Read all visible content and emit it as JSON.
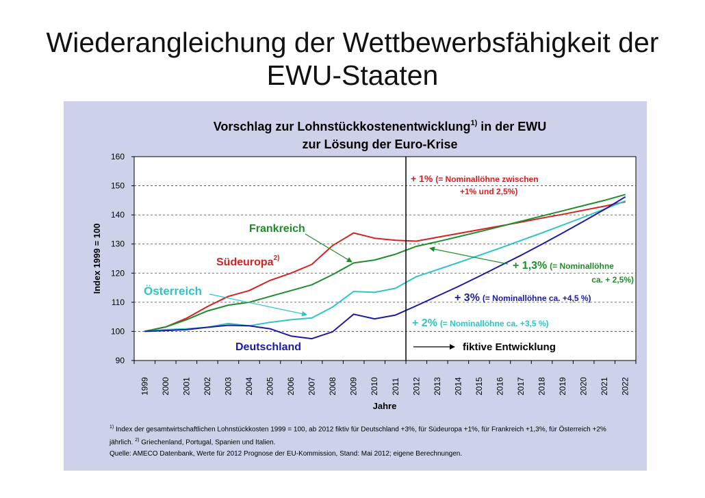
{
  "slide": {
    "title_line1": "Wiederangleichung der Wettbewerbsfähigkeit der",
    "title_line2": "EWU-Staaten"
  },
  "chart_data": {
    "type": "line",
    "title_line1": "Vorschlag zur Lohnstückkostenentwicklung",
    "title_sup": "1)",
    "title_line1_end": " in der EWU",
    "title_line2": "zur Lösung der Euro-Krise",
    "xlabel": "Jahre",
    "ylabel": "Index 1999 = 100",
    "ylim": [
      90,
      160
    ],
    "yticks": [
      90,
      100,
      110,
      120,
      130,
      140,
      150,
      160
    ],
    "grid": "dashed horizontal",
    "x": [
      1999,
      2000,
      2001,
      2002,
      2003,
      2004,
      2005,
      2006,
      2007,
      2008,
      2009,
      2010,
      2011,
      2012,
      2013,
      2014,
      2015,
      2016,
      2017,
      2018,
      2019,
      2020,
      2021,
      2022
    ],
    "divider_between": [
      2011,
      2012
    ],
    "series": [
      {
        "name": "Südeuropa",
        "sup": "2)",
        "color": "#d92020",
        "values": [
          100,
          101.5,
          104.5,
          108.5,
          112,
          114,
          117.5,
          120,
          123,
          129.5,
          133.8,
          132,
          131.3,
          131,
          132.3,
          133.6,
          134.9,
          136.2,
          137.5,
          138.9,
          140.2,
          141.6,
          143,
          144.5
        ]
      },
      {
        "name": "Frankreich",
        "color": "#1e8c2a",
        "values": [
          100,
          101.5,
          104,
          107,
          109,
          110,
          112,
          114,
          116,
          119.5,
          123.5,
          124.5,
          126.5,
          129.2,
          130.8,
          132.5,
          134.2,
          136,
          137.8,
          139.6,
          141.4,
          143.2,
          145,
          147
        ]
      },
      {
        "name": "Österreich",
        "color": "#2ec4c4",
        "values": [
          100,
          100.6,
          100.9,
          101.4,
          102.7,
          101.9,
          103.1,
          104,
          104.6,
          108.4,
          113.7,
          113.4,
          114.8,
          118.8,
          121.2,
          123.6,
          126.1,
          128.6,
          131.2,
          133.8,
          136.5,
          139.2,
          142,
          144.8
        ]
      },
      {
        "name": "Deutschland",
        "color": "#1a1aa8",
        "values": [
          100,
          100.3,
          100.6,
          101.4,
          102.1,
          101.9,
          100.9,
          98.4,
          97.5,
          99.9,
          105.9,
          104.3,
          105.6,
          108.8,
          112.1,
          115.4,
          118.9,
          122.5,
          126.1,
          129.9,
          133.8,
          137.8,
          141.9,
          146.2
        ]
      }
    ],
    "annotations": {
      "frankreich": "Frankreich",
      "suedeuropa": "Südeuropa",
      "suedeuropa_sup": "2)",
      "oesterreich": "Österreich",
      "deutschland": "Deutschland",
      "plus1_main": "+ 1%",
      "plus1_note1": "(= Nominallöhne zwischen",
      "plus1_note2": "+1% und 2,5%)",
      "plus13_main": "+ 1,3%",
      "plus13_note1": "(= Nominallöhne",
      "plus13_note2": "ca. + 2,5%)",
      "plus3_main": "+ 3%",
      "plus3_note": "(= Nominallöhne ca. +4,5 %)",
      "plus2_main": "+ 2%",
      "plus2_note": "(= Nominallöhne ca. +3,5 %)",
      "fiktiv": "fiktive Entwicklung"
    }
  },
  "notes": {
    "fn1_mark": "1)",
    "fn1_text": " Index der gesamtwirtschaftlichen Lohnstückkosten 1999 = 100, ab 2012 fiktiv für Deutschland +3%, für Südeuropa +1%, für Frankreich +1,3%, für Österreich +2%",
    "fn1_cont": "jährlich. ",
    "fn2_mark": "2)",
    "fn2_text": " Griechenland, Portugal, Spanien und Italien.",
    "source": "Quelle: AMECO Datenbank, Werte für 2012 Prognose der EU-Kommission, Stand: Mai 2012; eigene Berechnungen."
  }
}
